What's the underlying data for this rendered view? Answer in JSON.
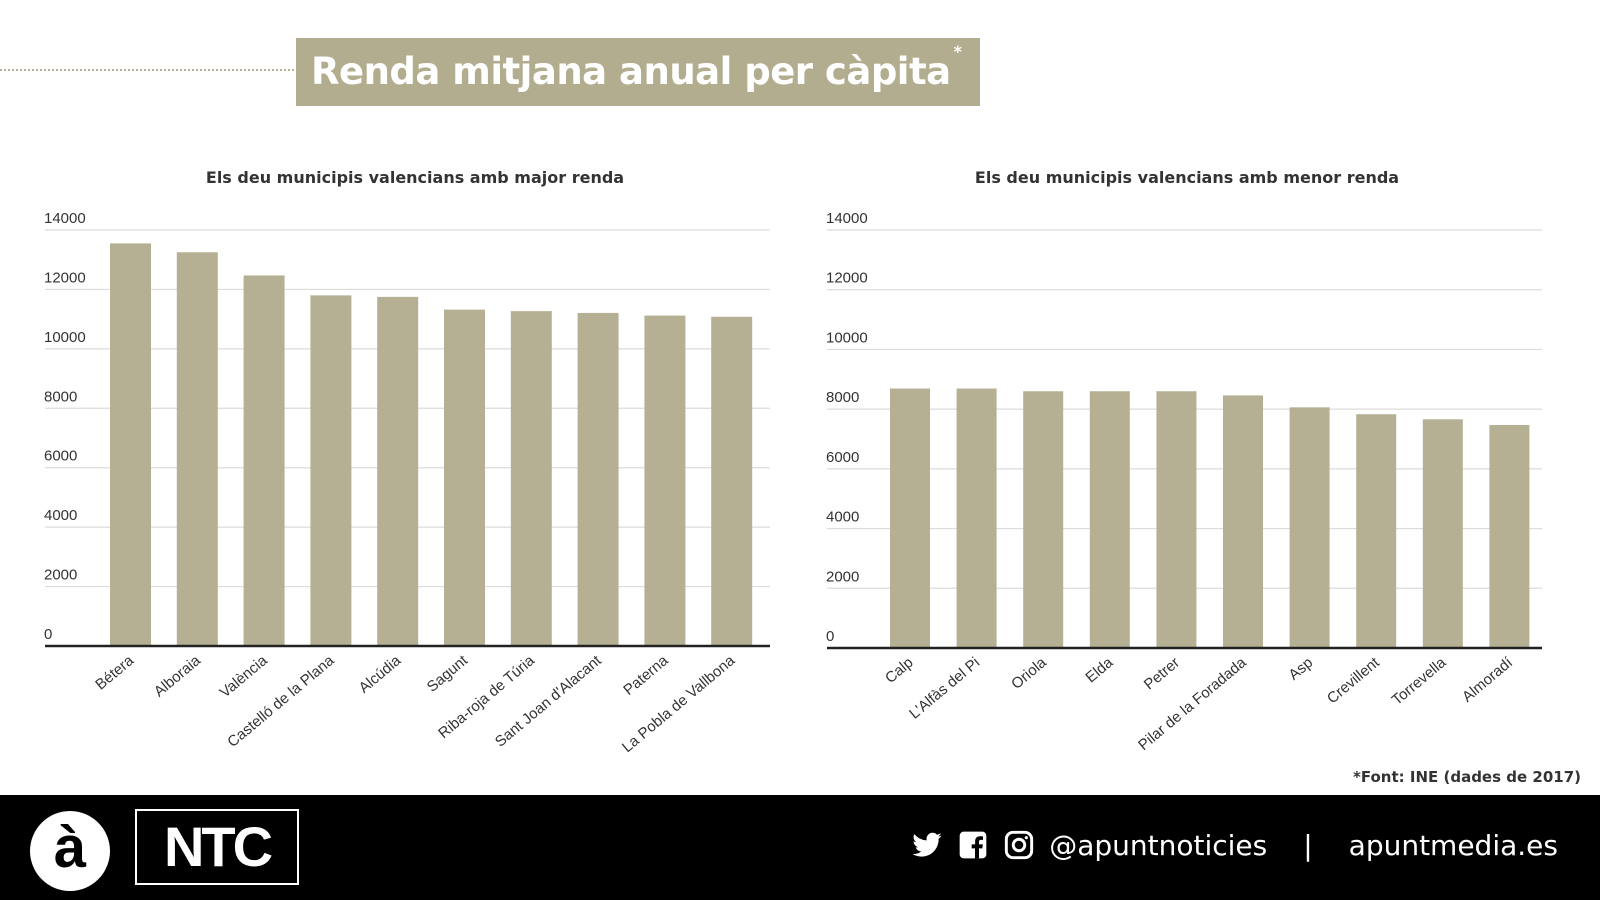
{
  "header": {
    "title": "Renda mitjana anual per càpita",
    "title_mark": "*"
  },
  "colors": {
    "bar": "#b5b093",
    "title_box": "#b3ad8f",
    "footer": "#000000"
  },
  "chart_data": [
    {
      "type": "bar",
      "title": "Els deu municipis valencians amb major renda",
      "categories": [
        "Bétera",
        "Alboraia",
        "València",
        "Castelló de la Plana",
        "Alcúdia",
        "Sagunt",
        "Riba-roja de Túria",
        "Sant Joan d'Alacant",
        "Paterna",
        "La Pobla de Vallbona"
      ],
      "values": [
        13550,
        13250,
        12470,
        11800,
        11750,
        11320,
        11270,
        11210,
        11120,
        11080
      ],
      "ylim": [
        0,
        14000
      ],
      "yticks": [
        "0",
        "2000",
        "4000",
        "6000",
        "8000",
        "10000",
        "12000",
        "14000"
      ],
      "grid": true
    },
    {
      "type": "bar",
      "title": "Els deu municipis valencians amb menor renda",
      "categories": [
        "Calp",
        "L'Alfàs del Pi",
        "Oriola",
        "Elda",
        "Petrer",
        "Pilar de la Foradada",
        "Asp",
        "Crevillent",
        "Torrevella",
        "Almoradí"
      ],
      "values": [
        8690,
        8690,
        8600,
        8600,
        8600,
        8460,
        8060,
        7830,
        7660,
        7470
      ],
      "ylim": [
        0,
        14000
      ],
      "yticks": [
        "0",
        "2000",
        "4000",
        "6000",
        "8000",
        "10000",
        "12000",
        "14000"
      ],
      "grid": true
    }
  ],
  "source": "*Font: INE (dades de 2017)",
  "footer": {
    "logo_a": "à",
    "logo_ntc": "NTC",
    "icons": [
      "twitter-icon",
      "facebook-icon",
      "instagram-icon"
    ],
    "handle": "@apuntnoticies",
    "separator": "|",
    "site": "apuntmedia.es"
  }
}
